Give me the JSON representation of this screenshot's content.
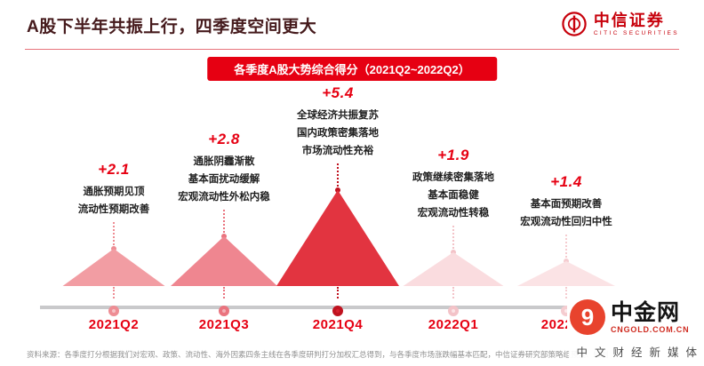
{
  "header": {
    "title": "A股下半年共振上行，四季度空间更大",
    "logo": {
      "cn": "中信证券",
      "en": "CITIC SECURITIES"
    }
  },
  "banner": {
    "label": "各季度A股大势综合得分（2021Q2~2022Q2）"
  },
  "chart_data": {
    "type": "area",
    "title": "各季度A股大势综合得分（2021Q2~2022Q2）",
    "categories": [
      "2021Q2",
      "2021Q3",
      "2021Q4",
      "2022Q1",
      "2022Q2"
    ],
    "values": [
      2.1,
      2.8,
      5.4,
      1.9,
      1.4
    ],
    "ylim": [
      0,
      6
    ],
    "legend": "none",
    "grid": false,
    "points": [
      {
        "quarter": "2021Q2",
        "score_label": "+2.1",
        "value": 2.1,
        "notes": [
          "通胀预期见顶",
          "流动性预期改善"
        ],
        "peak_color": "#f29da3",
        "ring_color": "#ee8d94",
        "dot_fill": "#f6c3c7",
        "highlight": false
      },
      {
        "quarter": "2021Q3",
        "score_label": "+2.8",
        "value": 2.8,
        "notes": [
          "通胀阴霾渐散",
          "基本面扰动缓解",
          "宏观流动性外松内稳"
        ],
        "peak_color": "#ef8690",
        "ring_color": "#ea737e",
        "dot_fill": "#f3b0b6",
        "highlight": false
      },
      {
        "quarter": "2021Q4",
        "score_label": "+5.4",
        "value": 5.4,
        "notes": [
          "全球经济共振复苏",
          "国内政策密集落地",
          "市场流动性充裕"
        ],
        "peak_color": "#e23440",
        "ring_color": "#c0121f",
        "dot_fill": "#d5202e",
        "highlight": true
      },
      {
        "quarter": "2022Q1",
        "score_label": "+1.9",
        "value": 1.9,
        "notes": [
          "政策继续密集落地",
          "基本面稳健",
          "宏观流动性转稳"
        ],
        "peak_color": "#fadcdf",
        "ring_color": "#f3c3c8",
        "dot_fill": "#fbe4e6",
        "highlight": false
      },
      {
        "quarter": "2022Q2",
        "score_label": "+1.4",
        "value": 1.4,
        "notes": [
          "基本面预期改善",
          "宏观流动性回归中性"
        ],
        "peak_color": "#fbe3e5",
        "ring_color": "#f5ccd0",
        "dot_fill": "#fdeaeb",
        "highlight": false
      }
    ]
  },
  "footer": {
    "source": "资料来源：各季度打分根据我们对宏观、政策、流动性、海外因素四条主线在各季度研判打分加权汇总得到，与各季度市场涨跌幅基本匹配，中信证券研究部策略组预测、绘制"
  },
  "watermark": {
    "logo_char": "9",
    "name": "中金网",
    "domain": "CNGOLD.COM.CN",
    "tagline": "中文财经新媒体"
  },
  "colors": {
    "accent_red": "#e60012",
    "brand_red": "#c7000b",
    "title_color": "#451a1c",
    "timeline_gray": "#c9c9cb",
    "watermark_orange": "#e8432d"
  }
}
